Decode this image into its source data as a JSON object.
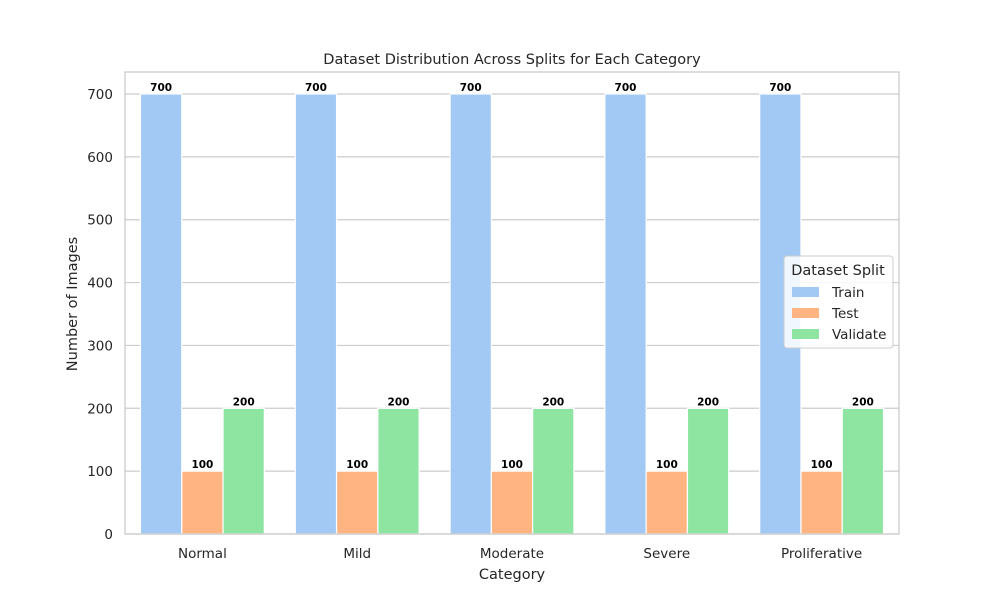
{
  "chart_data": {
    "type": "bar",
    "title": "Dataset Distribution Across Splits for Each Category",
    "xlabel": "Category",
    "ylabel": "Number of Images",
    "categories": [
      "Normal",
      "Mild",
      "Moderate",
      "Severe",
      "Proliferative"
    ],
    "series": [
      {
        "name": "Train",
        "values": [
          700,
          700,
          700,
          700,
          700
        ],
        "color": "#a1c9f4"
      },
      {
        "name": "Test",
        "values": [
          100,
          100,
          100,
          100,
          100
        ],
        "color": "#ffb482"
      },
      {
        "name": "Validate",
        "values": [
          200,
          200,
          200,
          200,
          200
        ],
        "color": "#8de5a1"
      }
    ],
    "ylim": [
      0,
      735
    ],
    "yticks": [
      0,
      100,
      200,
      300,
      400,
      500,
      600,
      700
    ],
    "grid": true,
    "legend": {
      "title": "Dataset Split",
      "placement": "center-right"
    },
    "colors": {
      "grid": "#cccccc",
      "frame": "#cccccc",
      "text": "#262626",
      "data_label": "#000000"
    }
  }
}
